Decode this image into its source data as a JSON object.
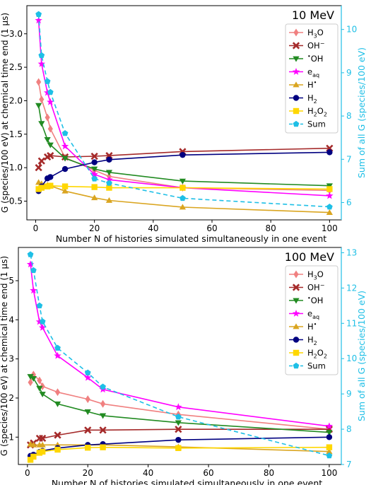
{
  "figure": {
    "colors": {
      "H3O": "#f08080",
      "OH-": "#a52a2a",
      "OH_rad": "#228b22",
      "eaq": "#ff00ff",
      "H_rad": "#daa520",
      "H2": "#000080",
      "H2O2": "#ffd700",
      "Sum": "#1ebfe6",
      "right_axis": "#1ebfe6"
    }
  },
  "chart_data": [
    {
      "type": "line",
      "title": "10 MeV",
      "xlabel": "Number N of histories simulated simultaneously in one event",
      "ylabel": "G (species/100 eV) at chemical time end (1 μs)",
      "y2label": "Sum of all G (species/100 eV)",
      "xlim": [
        -3,
        104
      ],
      "ylim": [
        0.22,
        3.42
      ],
      "y2lim": [
        5.6,
        10.55
      ],
      "xticks": [
        "0",
        "20",
        "40",
        "60",
        "80",
        "100"
      ],
      "yticks": [
        "0.5",
        "1.0",
        "1.5",
        "2.0",
        "2.5",
        "3.0"
      ],
      "y2ticks": [
        "6",
        "7",
        "8",
        "9",
        "10"
      ],
      "legend_position": "top-right",
      "legend": [
        "H₃O",
        "OH⁻",
        "•OH",
        "eaq",
        "H•",
        "H₂",
        "H₂O₂",
        "Sum"
      ],
      "x": [
        1,
        2,
        4,
        5,
        10,
        20,
        25,
        50,
        100
      ],
      "series": [
        {
          "name": "H₃O",
          "marker": "diamond",
          "color_key": "H3O",
          "values": [
            2.28,
            2.02,
            1.75,
            1.58,
            1.15,
            0.96,
            0.87,
            0.7,
            0.66
          ]
        },
        {
          "name": "OH⁻",
          "marker": "x",
          "color_key": "OH-",
          "values": [
            1.0,
            1.1,
            1.16,
            1.18,
            1.16,
            1.17,
            1.18,
            1.24,
            1.29
          ]
        },
        {
          "name": "•OH",
          "marker": "tri_down",
          "color_key": "OH_rad",
          "values": [
            1.93,
            1.66,
            1.42,
            1.34,
            1.14,
            0.98,
            0.93,
            0.8,
            0.73
          ]
        },
        {
          "name": "eaq",
          "marker": "star",
          "color_key": "eaq",
          "values": [
            3.2,
            2.55,
            2.12,
            1.98,
            1.32,
            0.9,
            0.82,
            0.7,
            0.58
          ]
        },
        {
          "name": "H•",
          "marker": "tri_up",
          "color_key": "H_rad",
          "values": [
            0.78,
            0.76,
            0.74,
            0.73,
            0.65,
            0.55,
            0.51,
            0.41,
            0.33
          ]
        },
        {
          "name": "H₂",
          "marker": "circle",
          "color_key": "H2",
          "values": [
            0.65,
            0.72,
            0.84,
            0.86,
            0.98,
            1.08,
            1.12,
            1.19,
            1.23
          ]
        },
        {
          "name": "H₂O₂",
          "marker": "square",
          "color_key": "H2O2",
          "values": [
            0.68,
            0.7,
            0.72,
            0.73,
            0.72,
            0.71,
            0.7,
            0.7,
            0.68
          ]
        },
        {
          "name": "Sum",
          "marker": "pentagon",
          "color_key": "Sum",
          "axis": "right",
          "dashed": true,
          "values": [
            10.35,
            9.4,
            8.8,
            8.55,
            7.6,
            6.55,
            6.45,
            6.1,
            5.9
          ]
        }
      ]
    },
    {
      "type": "line",
      "title": "100 MeV",
      "xlabel": "Number N of histories simulated simultaneously in one event",
      "ylabel": "G (species/100 eV) at chemical time end (1 μs)",
      "y2label": "Sum of all G (species/100 eV)",
      "xlim": [
        -3,
        104
      ],
      "ylim": [
        0.3,
        5.85
      ],
      "y2lim": [
        7.0,
        13.15
      ],
      "xticks": [
        "0",
        "20",
        "40",
        "60",
        "80",
        "100"
      ],
      "yticks": [
        "1",
        "2",
        "3",
        "4",
        "5"
      ],
      "y2ticks": [
        "7",
        "8",
        "9",
        "10",
        "11",
        "12",
        "13"
      ],
      "legend_position": "top-right",
      "legend": [
        "H₃O",
        "OH⁻",
        "•OH",
        "eaq",
        "H•",
        "H₂",
        "H₂O₂",
        "Sum"
      ],
      "x": [
        1,
        2,
        4,
        5,
        10,
        20,
        25,
        50,
        100
      ],
      "series": [
        {
          "name": "H₃O",
          "marker": "diamond",
          "color_key": "H3O",
          "values": [
            2.4,
            2.6,
            2.45,
            2.3,
            2.15,
            1.97,
            1.85,
            1.58,
            1.2
          ]
        },
        {
          "name": "OH⁻",
          "marker": "x",
          "color_key": "OH-",
          "values": [
            0.8,
            0.85,
            0.97,
            0.97,
            1.05,
            1.18,
            1.18,
            1.2,
            1.2
          ]
        },
        {
          "name": "•OH",
          "marker": "tri_down",
          "color_key": "OH_rad",
          "values": [
            2.55,
            2.5,
            2.25,
            2.1,
            1.85,
            1.65,
            1.55,
            1.37,
            1.12
          ]
        },
        {
          "name": "eaq",
          "marker": "star",
          "color_key": "eaq",
          "values": [
            5.42,
            4.75,
            3.95,
            3.8,
            3.08,
            2.52,
            2.22,
            1.77,
            1.28
          ]
        },
        {
          "name": "H•",
          "marker": "tri_up",
          "color_key": "H_rad",
          "values": [
            0.82,
            0.8,
            0.8,
            0.8,
            0.8,
            0.8,
            0.8,
            0.75,
            0.63
          ]
        },
        {
          "name": "H₂",
          "marker": "circle",
          "color_key": "H2",
          "values": [
            0.52,
            0.55,
            0.62,
            0.65,
            0.72,
            0.8,
            0.82,
            0.93,
            1.0
          ]
        },
        {
          "name": "H₂O₂",
          "marker": "square",
          "color_key": "H2O2",
          "values": [
            0.42,
            0.5,
            0.6,
            0.63,
            0.68,
            0.73,
            0.74,
            0.72,
            0.74
          ]
        },
        {
          "name": "Sum",
          "marker": "pentagon",
          "color_key": "Sum",
          "axis": "right",
          "dashed": true,
          "values": [
            12.95,
            12.5,
            11.5,
            11.05,
            10.3,
            9.6,
            9.2,
            8.35,
            7.25
          ]
        }
      ]
    }
  ]
}
